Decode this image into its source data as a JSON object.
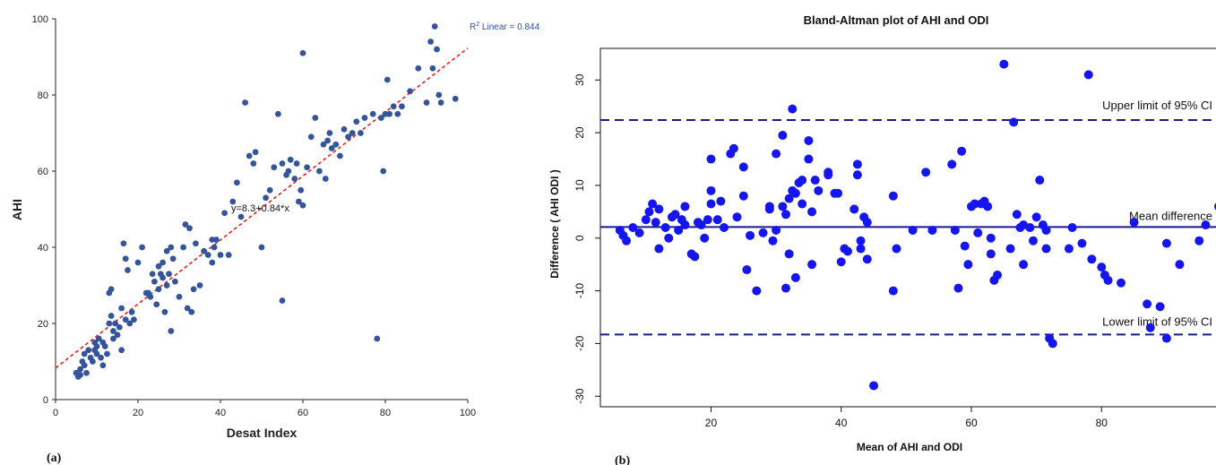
{
  "colors": {
    "scatter_a": "#34549c",
    "fit_line_a": "#e8231c",
    "scatter_b": "#1515f0",
    "ref_lines_b": "#1a1a8c",
    "r2_text": "#2d4fa0"
  },
  "panels": {
    "a": {
      "label": "(a)"
    },
    "b": {
      "label": "(b)"
    }
  },
  "chart_data": [
    {
      "type": "scatter",
      "panel": "(a)",
      "title": "",
      "xlabel": "Desat Index",
      "ylabel": "AHI",
      "xlim": [
        0,
        100
      ],
      "ylim": [
        0,
        100
      ],
      "xticks": [
        0,
        20,
        40,
        60,
        80,
        100
      ],
      "yticks": [
        0,
        20,
        40,
        60,
        80,
        100
      ],
      "grid": false,
      "fit_line": {
        "intercept": 8.3,
        "slope": 0.84,
        "style": "dashed"
      },
      "annotations": {
        "equation": "y=8.3+0.84*x",
        "r2_prefix": "R",
        "r2_sup": "2",
        "r2_suffix": " Linear = 0.844"
      },
      "points": [
        [
          5,
          7
        ],
        [
          5.5,
          6
        ],
        [
          6,
          6.5
        ],
        [
          6,
          8
        ],
        [
          6.5,
          10
        ],
        [
          7,
          12
        ],
        [
          7,
          9
        ],
        [
          7.5,
          7
        ],
        [
          8,
          13
        ],
        [
          8.5,
          11
        ],
        [
          9,
          10
        ],
        [
          9.5,
          13
        ],
        [
          9.5,
          15
        ],
        [
          10,
          14
        ],
        [
          10,
          12
        ],
        [
          10.5,
          16
        ],
        [
          11,
          11
        ],
        [
          11.5,
          15
        ],
        [
          11.5,
          9
        ],
        [
          12,
          14
        ],
        [
          12.5,
          12
        ],
        [
          13,
          20
        ],
        [
          13,
          28
        ],
        [
          13.5,
          29
        ],
        [
          13.5,
          22
        ],
        [
          14,
          18
        ],
        [
          14,
          16
        ],
        [
          14.5,
          20
        ],
        [
          15,
          17
        ],
        [
          15.5,
          19
        ],
        [
          16,
          13
        ],
        [
          16,
          24
        ],
        [
          16.5,
          41
        ],
        [
          17,
          21
        ],
        [
          17,
          37
        ],
        [
          17.5,
          34
        ],
        [
          18,
          20
        ],
        [
          18.5,
          23
        ],
        [
          19,
          21
        ],
        [
          20,
          36
        ],
        [
          21,
          40
        ],
        [
          22,
          28
        ],
        [
          22.5,
          28
        ],
        [
          23,
          27
        ],
        [
          23.5,
          33
        ],
        [
          24,
          31
        ],
        [
          24.5,
          25
        ],
        [
          25,
          35
        ],
        [
          25,
          29
        ],
        [
          25.5,
          33
        ],
        [
          26,
          36
        ],
        [
          26,
          32
        ],
        [
          26.5,
          23
        ],
        [
          27,
          39
        ],
        [
          27,
          30
        ],
        [
          27.5,
          33
        ],
        [
          28,
          40
        ],
        [
          28,
          18
        ],
        [
          28.5,
          37
        ],
        [
          29,
          31
        ],
        [
          30,
          27
        ],
        [
          31,
          40
        ],
        [
          31.5,
          46
        ],
        [
          32,
          24
        ],
        [
          32.5,
          45
        ],
        [
          33,
          23
        ],
        [
          33.5,
          29
        ],
        [
          34,
          41
        ],
        [
          35,
          30
        ],
        [
          36,
          39
        ],
        [
          37,
          38
        ],
        [
          38,
          42
        ],
        [
          38,
          36
        ],
        [
          38.5,
          40
        ],
        [
          39,
          42
        ],
        [
          40,
          38
        ],
        [
          41,
          49
        ],
        [
          42,
          38
        ],
        [
          43,
          52
        ],
        [
          44,
          57
        ],
        [
          45,
          48
        ],
        [
          46,
          78
        ],
        [
          47,
          64
        ],
        [
          48,
          62
        ],
        [
          48.5,
          65
        ],
        [
          50,
          40
        ],
        [
          51,
          53
        ],
        [
          52,
          55
        ],
        [
          53,
          61
        ],
        [
          54,
          75
        ],
        [
          55,
          62
        ],
        [
          55,
          26
        ],
        [
          56,
          59
        ],
        [
          56.5,
          60
        ],
        [
          57,
          63
        ],
        [
          58,
          58
        ],
        [
          58.5,
          62
        ],
        [
          59,
          52
        ],
        [
          59.5,
          55
        ],
        [
          60,
          91
        ],
        [
          60,
          51
        ],
        [
          61,
          61
        ],
        [
          62,
          69
        ],
        [
          63,
          74
        ],
        [
          64,
          60
        ],
        [
          65,
          67
        ],
        [
          65.5,
          58
        ],
        [
          66,
          68
        ],
        [
          66.5,
          70
        ],
        [
          67,
          66
        ],
        [
          68,
          67
        ],
        [
          69,
          64
        ],
        [
          70,
          71
        ],
        [
          71,
          69
        ],
        [
          72,
          70
        ],
        [
          73,
          73
        ],
        [
          74,
          70
        ],
        [
          75,
          74
        ],
        [
          77,
          75
        ],
        [
          78,
          16
        ],
        [
          79,
          74
        ],
        [
          79.5,
          60
        ],
        [
          80,
          75
        ],
        [
          80.5,
          84
        ],
        [
          81,
          75
        ],
        [
          82,
          77
        ],
        [
          83,
          75
        ],
        [
          84,
          77
        ],
        [
          86,
          81
        ],
        [
          88,
          87
        ],
        [
          90,
          78
        ],
        [
          91,
          94
        ],
        [
          91.5,
          87
        ],
        [
          92,
          98
        ],
        [
          92.5,
          92
        ],
        [
          93,
          80
        ],
        [
          93.5,
          78
        ],
        [
          97,
          79
        ]
      ]
    },
    {
      "type": "scatter",
      "panel": "(b)",
      "title": "Bland-Altman plot of AHI and ODI",
      "xlabel": "Mean of AHI and ODI",
      "ylabel": "Difference ( AHI  ODI )",
      "xlim": [
        3,
        98
      ],
      "ylim": [
        -32,
        36
      ],
      "xticks": [
        20,
        40,
        60,
        80
      ],
      "yticks": [
        -30,
        -20,
        -10,
        0,
        10,
        20,
        30
      ],
      "grid": false,
      "reference_lines": [
        {
          "y": 22.4,
          "style": "dashed",
          "label": "Upper limit of 95% CI"
        },
        {
          "y": 2.1,
          "style": "solid",
          "label": "Mean difference"
        },
        {
          "y": -18.3,
          "style": "dashed",
          "label": "Lower limit of 95% CI"
        }
      ],
      "points": [
        [
          6,
          1.5
        ],
        [
          6.5,
          0.5
        ],
        [
          7,
          -0.5
        ],
        [
          8,
          2
        ],
        [
          9,
          1
        ],
        [
          10,
          3.5
        ],
        [
          10.5,
          5
        ],
        [
          11,
          6.5
        ],
        [
          11.5,
          3
        ],
        [
          12,
          -2
        ],
        [
          12,
          5.5
        ],
        [
          13,
          2
        ],
        [
          13.5,
          0
        ],
        [
          14,
          4
        ],
        [
          14.5,
          4.5
        ],
        [
          15,
          1.5
        ],
        [
          15.5,
          3.5
        ],
        [
          16,
          6
        ],
        [
          16,
          2.5
        ],
        [
          17,
          -3
        ],
        [
          17.5,
          -3.5
        ],
        [
          18,
          3
        ],
        [
          18.5,
          2.5
        ],
        [
          19,
          0
        ],
        [
          19.5,
          3.5
        ],
        [
          20,
          9
        ],
        [
          20,
          6.5
        ],
        [
          20,
          15
        ],
        [
          21,
          3.5
        ],
        [
          21.5,
          7
        ],
        [
          22,
          2
        ],
        [
          23,
          16
        ],
        [
          23.5,
          17
        ],
        [
          24,
          4
        ],
        [
          25,
          13.5
        ],
        [
          25,
          8
        ],
        [
          25.5,
          -6
        ],
        [
          26,
          0.5
        ],
        [
          27,
          -10
        ],
        [
          28,
          1
        ],
        [
          29,
          6
        ],
        [
          29,
          5.5
        ],
        [
          29.5,
          -0.5
        ],
        [
          30,
          16
        ],
        [
          30,
          1.5
        ],
        [
          31,
          19.5
        ],
        [
          31,
          6
        ],
        [
          31.5,
          4.5
        ],
        [
          31.5,
          -9.5
        ],
        [
          32,
          7.5
        ],
        [
          32,
          -3
        ],
        [
          32.5,
          9
        ],
        [
          32.5,
          24.5
        ],
        [
          33,
          -7.5
        ],
        [
          33,
          8.5
        ],
        [
          33.5,
          10.5
        ],
        [
          34,
          6.5
        ],
        [
          34,
          11
        ],
        [
          35,
          18.5
        ],
        [
          35,
          15
        ],
        [
          35.5,
          5
        ],
        [
          35.5,
          -5
        ],
        [
          36,
          11
        ],
        [
          36.5,
          9
        ],
        [
          38,
          12.5
        ],
        [
          38,
          12
        ],
        [
          39,
          8.5
        ],
        [
          39.5,
          8.5
        ],
        [
          40,
          -4.5
        ],
        [
          40.5,
          -2
        ],
        [
          41,
          -2.5
        ],
        [
          42,
          5.5
        ],
        [
          42.5,
          12
        ],
        [
          42.5,
          14
        ],
        [
          43,
          -0.5
        ],
        [
          43,
          -2
        ],
        [
          43.5,
          4
        ],
        [
          44,
          -4
        ],
        [
          44,
          3
        ],
        [
          45,
          -28
        ],
        [
          48,
          8
        ],
        [
          48,
          -10
        ],
        [
          48.5,
          -2
        ],
        [
          51,
          1.5
        ],
        [
          53,
          12.5
        ],
        [
          54,
          1.5
        ],
        [
          57,
          14
        ],
        [
          57.5,
          1.5
        ],
        [
          58,
          -9.5
        ],
        [
          58.5,
          16.5
        ],
        [
          59,
          -1.5
        ],
        [
          59.5,
          -5
        ],
        [
          60,
          6
        ],
        [
          60.5,
          6.5
        ],
        [
          61,
          1
        ],
        [
          61.5,
          6.5
        ],
        [
          62,
          7
        ],
        [
          62.5,
          6
        ],
        [
          63,
          -3
        ],
        [
          63,
          0
        ],
        [
          63.5,
          -8
        ],
        [
          64,
          -7
        ],
        [
          65,
          33
        ],
        [
          66,
          -2
        ],
        [
          66.5,
          22
        ],
        [
          67,
          4.5
        ],
        [
          67.5,
          2
        ],
        [
          68,
          2.5
        ],
        [
          68,
          -5
        ],
        [
          69,
          2
        ],
        [
          69.5,
          -0.5
        ],
        [
          70,
          4
        ],
        [
          70.5,
          11
        ],
        [
          71,
          2.5
        ],
        [
          71.5,
          -2
        ],
        [
          71.5,
          1.5
        ],
        [
          72,
          -19
        ],
        [
          72.5,
          -20
        ],
        [
          75,
          -2
        ],
        [
          75.5,
          2
        ],
        [
          77,
          -1
        ],
        [
          78,
          31
        ],
        [
          78.5,
          -4
        ],
        [
          80,
          -5.5
        ],
        [
          80.5,
          -7
        ],
        [
          81,
          -8
        ],
        [
          83,
          -8.5
        ],
        [
          85,
          3
        ],
        [
          87,
          -12.5
        ],
        [
          87.5,
          -17
        ],
        [
          89,
          -13
        ],
        [
          90,
          -19
        ],
        [
          90,
          -1
        ],
        [
          92,
          -5
        ],
        [
          95,
          -0.5
        ],
        [
          96,
          2.5
        ],
        [
          98,
          6
        ]
      ]
    }
  ]
}
